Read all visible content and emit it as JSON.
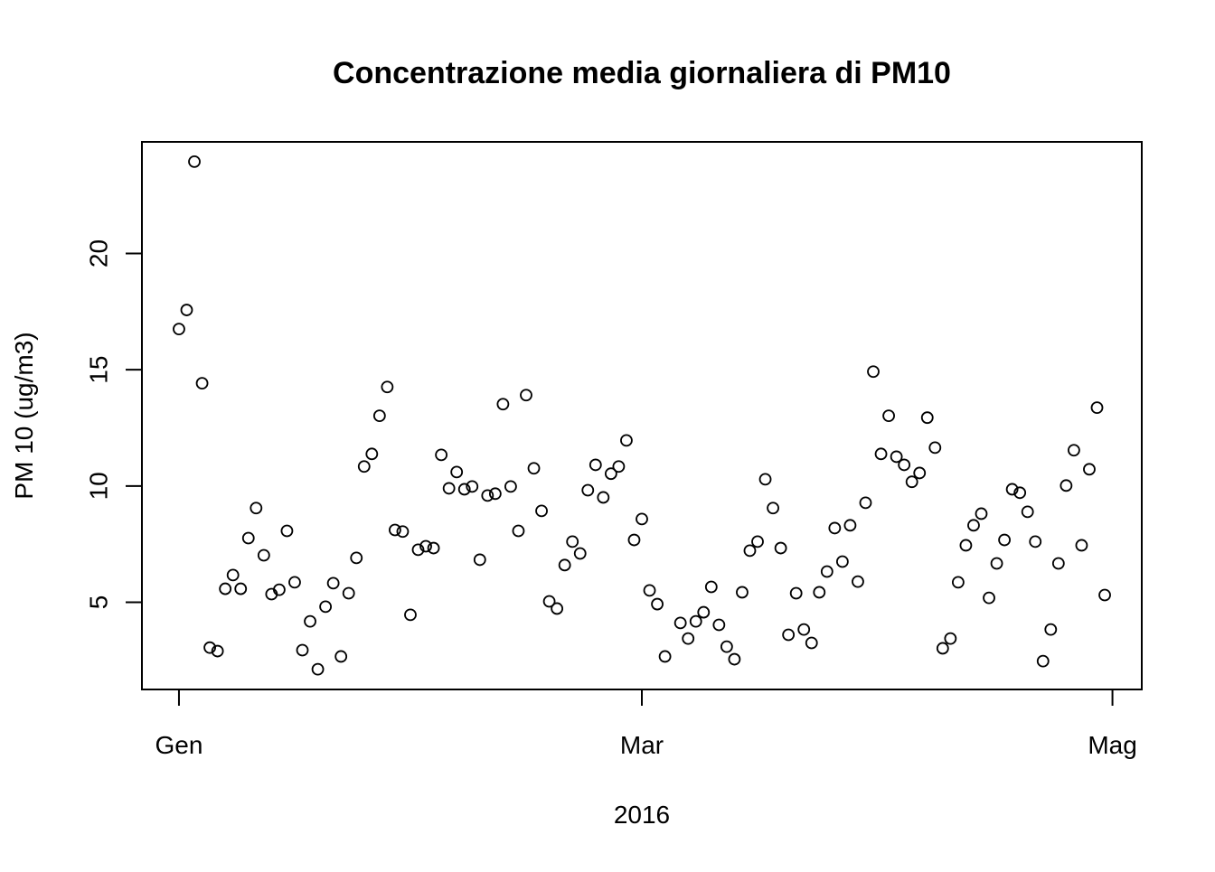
{
  "chart_data": {
    "type": "scatter",
    "title": "Concentrazione media giornaliera di PM10",
    "xlabel": "2016",
    "ylabel": "PM 10 (ug/m3)",
    "x": [
      0,
      1,
      2,
      3,
      4,
      5,
      6,
      7,
      8,
      9,
      10,
      11,
      12,
      13,
      14,
      15,
      16,
      17,
      18,
      19,
      20,
      21,
      22,
      23,
      24,
      25,
      26,
      27,
      28,
      29,
      30,
      31,
      32,
      33,
      34,
      35,
      36,
      37,
      38,
      39,
      40,
      41,
      42,
      43,
      44,
      45,
      46,
      47,
      48,
      49,
      50,
      51,
      52,
      53,
      54,
      55,
      56,
      57,
      58,
      59,
      60,
      61,
      62,
      63,
      65,
      66,
      67,
      68,
      69,
      70,
      71,
      72,
      73,
      74,
      75,
      76,
      77,
      78,
      79,
      80,
      81,
      82,
      83,
      84,
      85,
      86,
      87,
      88,
      89,
      90,
      91,
      92,
      93,
      94,
      95,
      96,
      97,
      98,
      99,
      100,
      101,
      102,
      103,
      104,
      105,
      106,
      107,
      108,
      109,
      110,
      111,
      112,
      113,
      114,
      115,
      116,
      117,
      118,
      119,
      120
    ],
    "values": [
      16.75,
      17.57,
      23.95,
      14.42,
      3.05,
      2.9,
      5.58,
      6.17,
      5.58,
      7.76,
      9.05,
      7.02,
      5.35,
      5.54,
      8.07,
      5.86,
      2.94,
      4.18,
      2.12,
      4.81,
      5.82,
      2.67,
      5.39,
      6.91,
      10.84,
      11.38,
      13.02,
      14.26,
      8.11,
      8.04,
      4.46,
      7.26,
      7.41,
      7.33,
      11.34,
      9.9,
      10.6,
      9.86,
      9.98,
      6.83,
      9.59,
      9.67,
      13.52,
      9.98,
      8.07,
      13.91,
      10.76,
      8.93,
      5.04,
      4.73,
      6.6,
      7.61,
      7.1,
      9.82,
      10.91,
      9.51,
      10.53,
      10.84,
      11.96,
      7.68,
      8.58,
      5.51,
      4.92,
      2.67,
      4.11,
      3.44,
      4.18,
      4.57,
      5.66,
      4.03,
      3.09,
      2.55,
      5.43,
      7.22,
      7.61,
      10.29,
      9.05,
      7.33,
      3.6,
      5.39,
      3.83,
      3.25,
      5.43,
      6.32,
      8.19,
      6.75,
      8.31,
      5.89,
      9.28,
      14.92,
      11.38,
      13.02,
      11.26,
      10.91,
      10.18,
      10.56,
      12.94,
      11.65,
      3.02,
      3.44,
      5.86,
      7.45,
      8.31,
      8.81,
      5.19,
      6.67,
      7.68,
      9.86,
      9.71,
      8.89,
      7.61,
      2.47,
      3.83,
      6.67,
      10.02,
      11.54,
      7.45,
      10.72,
      13.37,
      5.31
    ],
    "color": "#000000",
    "xlim": [
      -4.8,
      124.8
    ],
    "xticks": [
      {
        "value": 0,
        "label": "Gen"
      },
      {
        "value": 60,
        "label": "Mar"
      },
      {
        "value": 121,
        "label": "Mag"
      }
    ],
    "ylim": [
      1.25,
      24.8
    ],
    "yticks": [
      5,
      10,
      15,
      20
    ]
  }
}
